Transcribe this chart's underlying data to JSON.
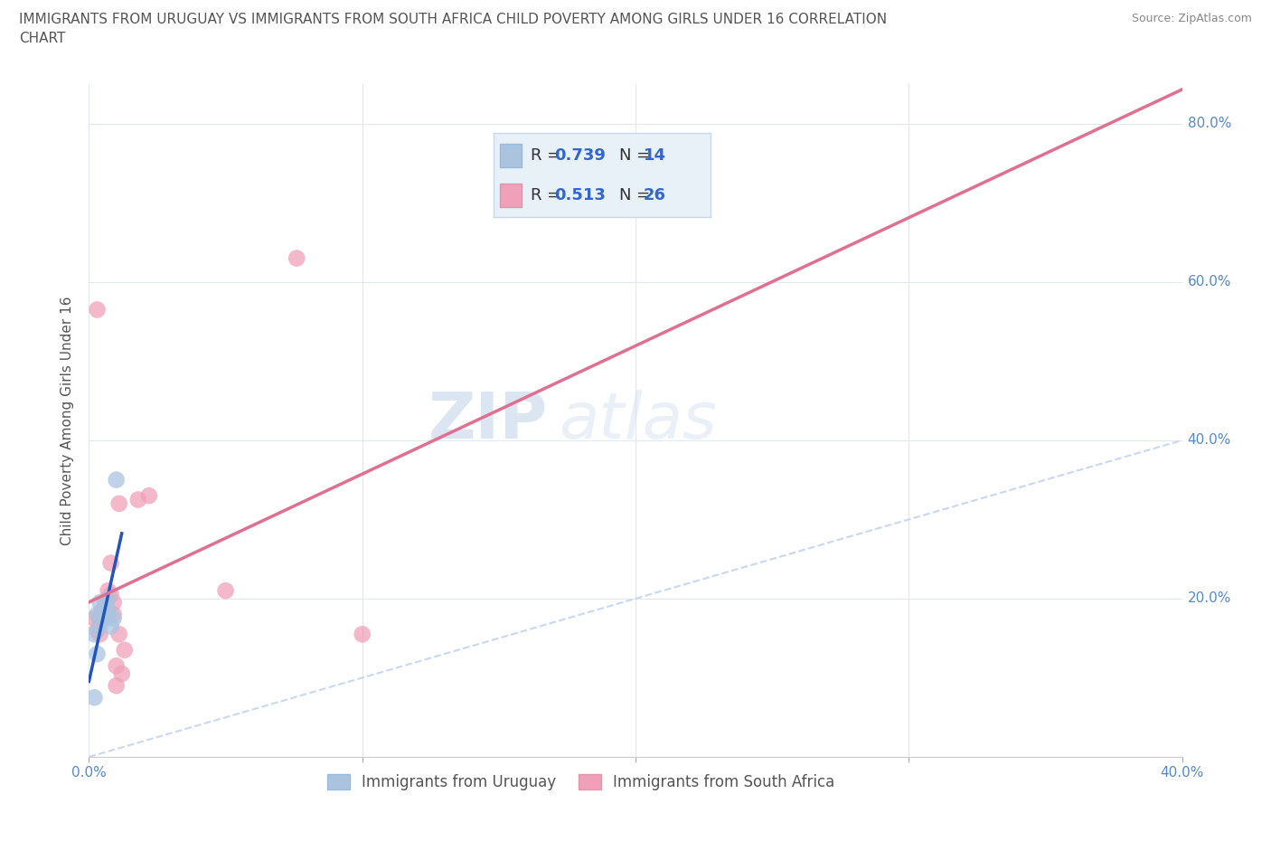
{
  "title_line1": "IMMIGRANTS FROM URUGUAY VS IMMIGRANTS FROM SOUTH AFRICA CHILD POVERTY AMONG GIRLS UNDER 16 CORRELATION",
  "title_line2": "CHART",
  "source_text": "Source: ZipAtlas.com",
  "ylabel": "Child Poverty Among Girls Under 16",
  "xlim": [
    0.0,
    0.4
  ],
  "ylim": [
    0.0,
    0.85
  ],
  "xticks": [
    0.0,
    0.1,
    0.2,
    0.3,
    0.4
  ],
  "yticks": [
    0.0,
    0.2,
    0.4,
    0.6,
    0.8
  ],
  "xtick_labels": [
    "0.0%",
    "",
    "",
    "",
    "40.0%"
  ],
  "ytick_labels_right": [
    "",
    "20.0%",
    "40.0%",
    "60.0%",
    "80.0%"
  ],
  "watermark_zip": "ZIP",
  "watermark_atlas": "atlas",
  "uruguay_color": "#aac4e0",
  "south_africa_color": "#f0a0b8",
  "uruguay_line_color": "#2255bb",
  "south_africa_line_color": "#e07090",
  "diagonal_color": "#c8d8f0",
  "R_uruguay": 0.739,
  "N_uruguay": 14,
  "R_south_africa": 0.513,
  "N_south_africa": 26,
  "uruguay_scatter": [
    [
      0.002,
      0.155
    ],
    [
      0.003,
      0.18
    ],
    [
      0.004,
      0.195
    ],
    [
      0.004,
      0.165
    ],
    [
      0.005,
      0.18
    ],
    [
      0.006,
      0.175
    ],
    [
      0.006,
      0.19
    ],
    [
      0.007,
      0.185
    ],
    [
      0.007,
      0.2
    ],
    [
      0.008,
      0.165
    ],
    [
      0.009,
      0.175
    ],
    [
      0.01,
      0.35
    ],
    [
      0.002,
      0.075
    ],
    [
      0.003,
      0.13
    ]
  ],
  "south_africa_scatter": [
    [
      0.002,
      0.175
    ],
    [
      0.003,
      0.565
    ],
    [
      0.003,
      0.16
    ],
    [
      0.004,
      0.175
    ],
    [
      0.004,
      0.155
    ],
    [
      0.005,
      0.185
    ],
    [
      0.005,
      0.185
    ],
    [
      0.006,
      0.195
    ],
    [
      0.006,
      0.18
    ],
    [
      0.007,
      0.18
    ],
    [
      0.007,
      0.21
    ],
    [
      0.008,
      0.205
    ],
    [
      0.008,
      0.245
    ],
    [
      0.009,
      0.18
    ],
    [
      0.009,
      0.195
    ],
    [
      0.01,
      0.115
    ],
    [
      0.01,
      0.09
    ],
    [
      0.011,
      0.155
    ],
    [
      0.011,
      0.32
    ],
    [
      0.012,
      0.105
    ],
    [
      0.013,
      0.135
    ],
    [
      0.018,
      0.325
    ],
    [
      0.022,
      0.33
    ],
    [
      0.05,
      0.21
    ],
    [
      0.076,
      0.63
    ],
    [
      0.1,
      0.155
    ]
  ],
  "background_color": "#ffffff",
  "legend_facecolor": "#e8f0f8",
  "legend_edgecolor": "#c8d8ec",
  "grid_color": "#e0e8f0",
  "title_color": "#555555",
  "axis_label_color": "#555555",
  "tick_color": "#888888",
  "right_tick_color": "#5588cc",
  "bottom_tick_color": "#5588cc",
  "legend_text_color": "#333333",
  "r_value_color": "#3366cc",
  "title_fontsize": 11,
  "axis_label_fontsize": 11,
  "tick_fontsize": 11,
  "legend_fontsize": 14,
  "source_fontsize": 9,
  "watermark_fontsize_zip": 52,
  "watermark_fontsize_atlas": 52,
  "legend_label_uruguay": "Immigrants from Uruguay",
  "legend_label_south_africa": "Immigrants from South Africa"
}
